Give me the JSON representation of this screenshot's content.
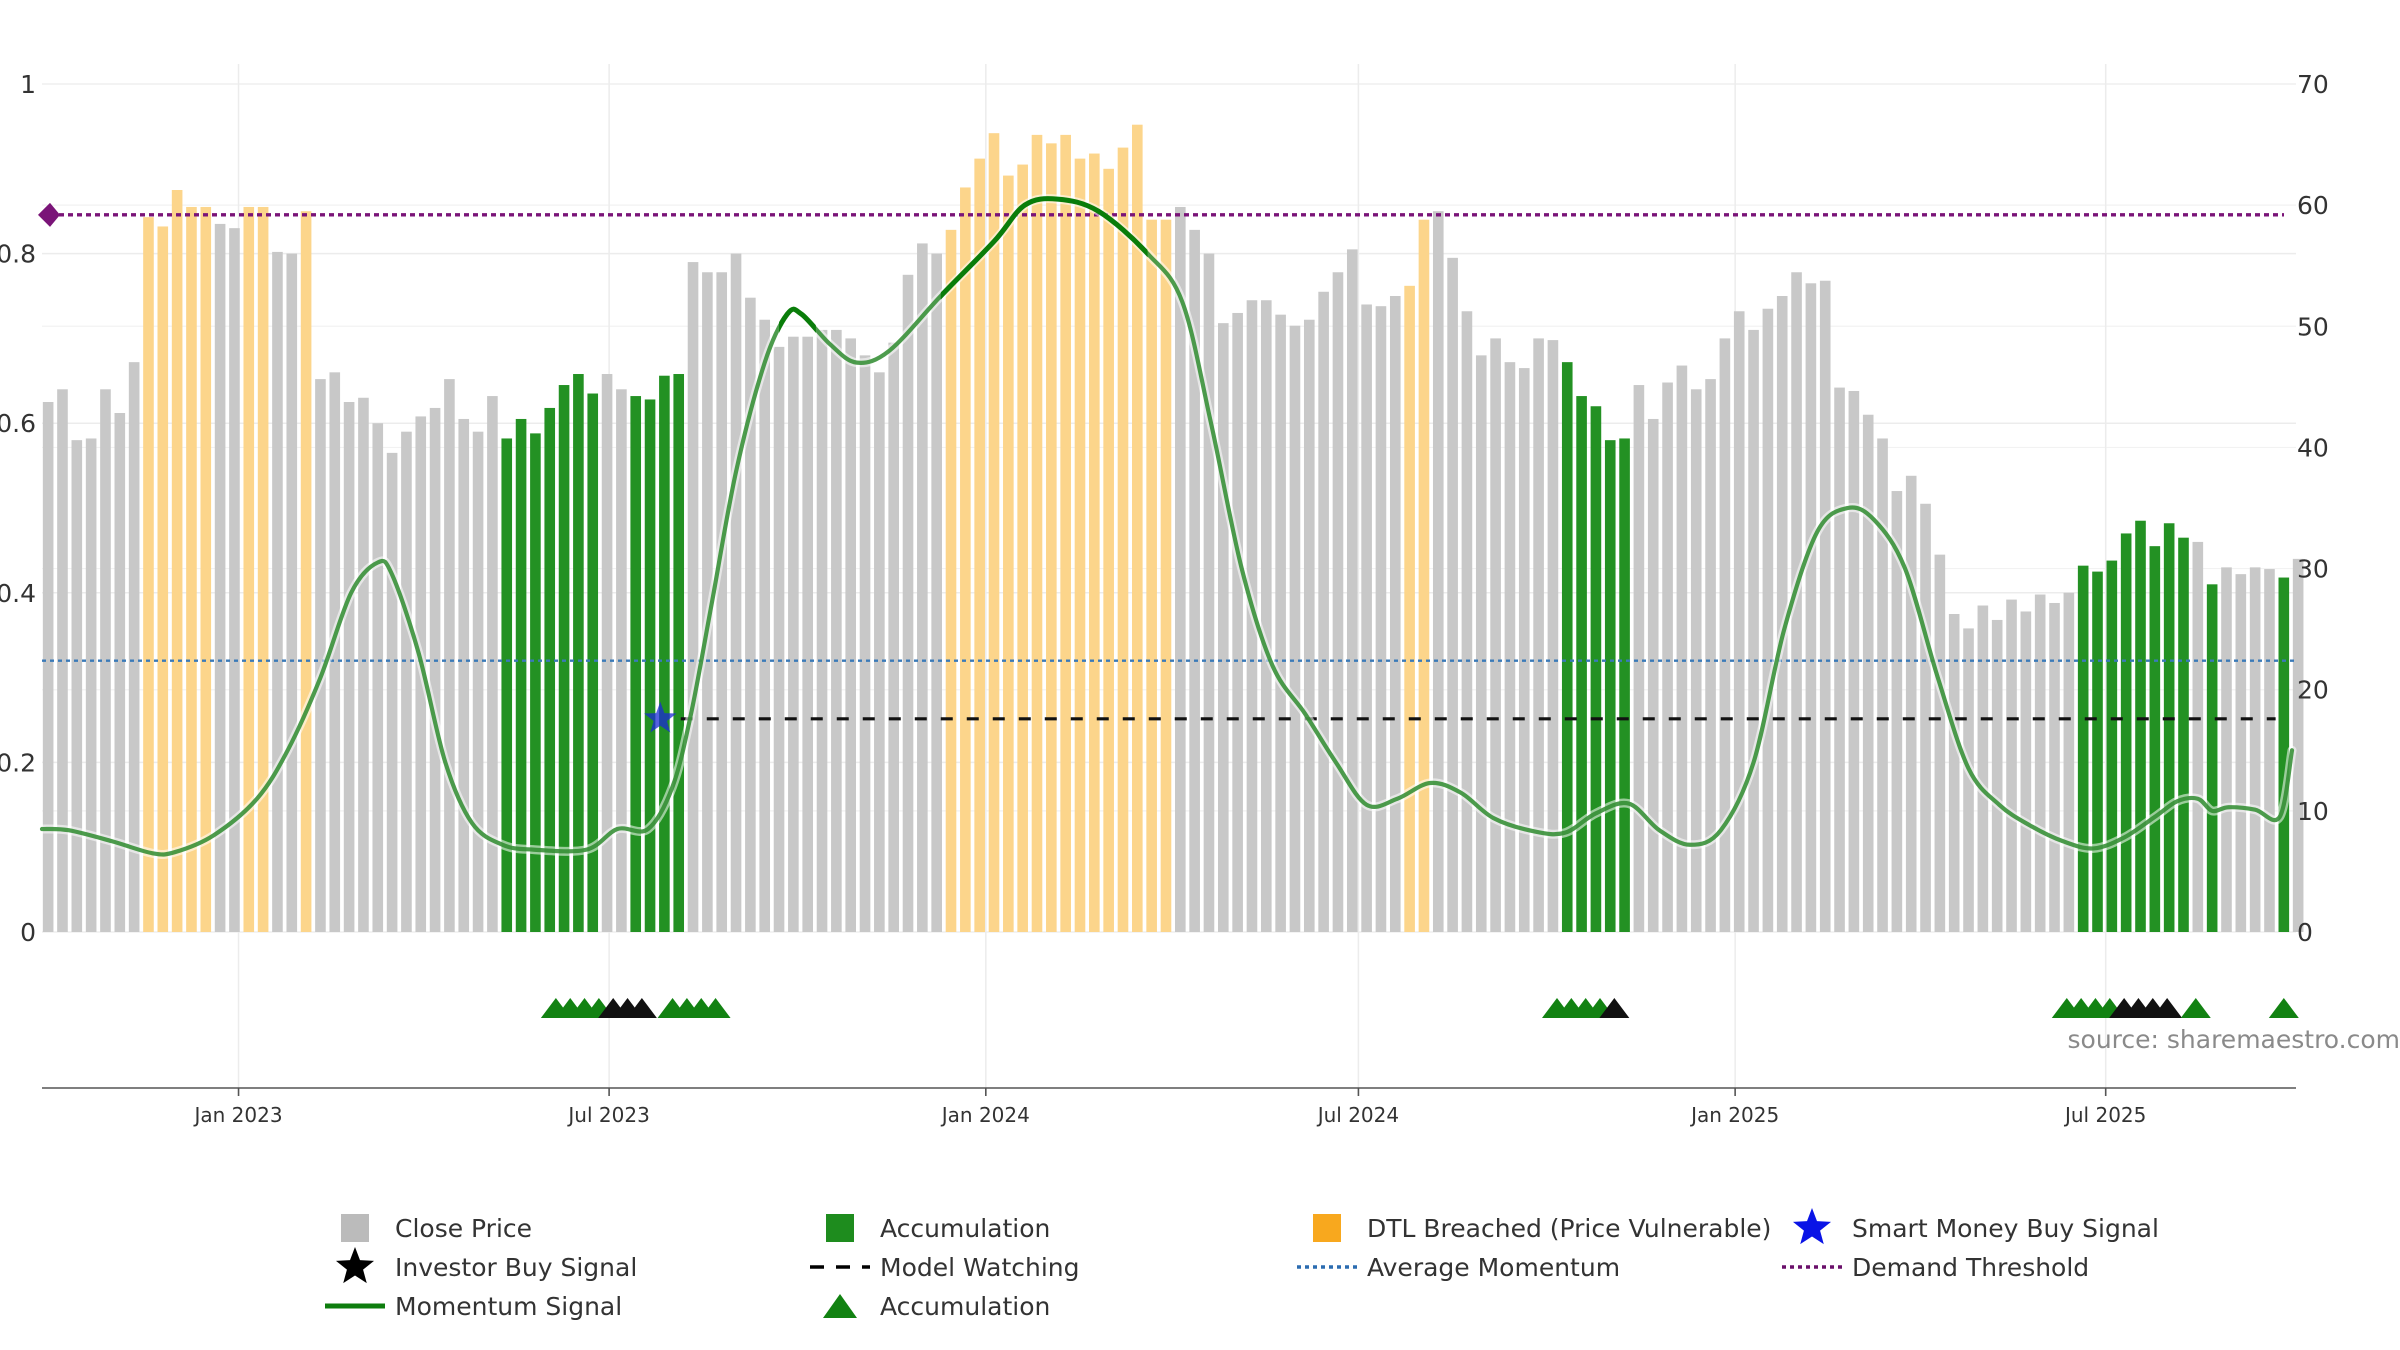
{
  "chart_data": {
    "type": "bar",
    "source_label": "source: sharemaestro.com",
    "x_range": [
      "2022-09-27",
      "2025-09-30"
    ],
    "x_ticks": [
      {
        "date": "2023-01-01",
        "label": "Jan 2023"
      },
      {
        "date": "2023-07-01",
        "label": "Jul 2023"
      },
      {
        "date": "2024-01-01",
        "label": "Jan 2024"
      },
      {
        "date": "2024-07-01",
        "label": "Jul 2024"
      },
      {
        "date": "2025-01-01",
        "label": "Jan 2025"
      },
      {
        "date": "2025-07-01",
        "label": "Jul 2025"
      }
    ],
    "y_left": {
      "min": 0,
      "max": 1,
      "ticks": [
        0,
        0.2,
        0.4,
        0.6,
        0.8,
        1
      ],
      "labels": [
        "0",
        "0.2",
        "0.4",
        "0.6",
        "0.8",
        "1"
      ]
    },
    "y_right": {
      "min": 0,
      "max": 70,
      "ticks": [
        0,
        10,
        20,
        30,
        40,
        50,
        60,
        70
      ],
      "labels": [
        "0",
        "10",
        "20",
        "30",
        "40",
        "50",
        "60",
        "70"
      ]
    },
    "grid": true,
    "colors": {
      "close": "#c8c8c8",
      "accumulation": "#239123",
      "dtl": "#fcd58b",
      "momentum": "#2e8b2e",
      "momentum_strong": "#0a7d0a",
      "average": "#3a7ab8",
      "demand": "#7a1478",
      "watching": "#111111",
      "star": "#1c2bd6",
      "triangle_green": "#128212",
      "triangle_black": "#111111"
    },
    "series": [
      {
        "name": "Close Price",
        "start_date": "2022-09-30",
        "step_days": 7,
        "values": [
          0.625,
          0.64,
          0.58,
          0.582,
          0.64,
          0.612,
          0.672,
          0.843,
          0.832,
          0.875,
          0.855,
          0.855,
          0.835,
          0.83,
          0.855,
          0.855,
          0.802,
          0.8,
          0.85,
          0.652,
          0.66,
          0.625,
          0.63,
          0.6,
          0.565,
          0.59,
          0.608,
          0.618,
          0.652,
          0.605,
          0.59,
          0.632,
          0.582,
          0.605,
          0.588,
          0.618,
          0.645,
          0.658,
          0.635,
          0.658,
          0.64,
          0.632,
          0.628,
          0.656,
          0.658,
          0.79,
          0.778,
          0.778,
          0.8,
          0.748,
          0.722,
          0.69,
          0.702,
          0.702,
          0.71,
          0.71,
          0.7,
          0.68,
          0.66,
          0.695,
          0.775,
          0.812,
          0.8,
          0.828,
          0.878,
          0.912,
          0.942,
          0.892,
          0.905,
          0.94,
          0.93,
          0.94,
          0.912,
          0.918,
          0.9,
          0.925,
          0.952,
          0.84,
          0.84,
          0.855,
          0.828,
          0.8,
          0.718,
          0.73,
          0.745,
          0.745,
          0.728,
          0.715,
          0.722,
          0.755,
          0.778,
          0.805,
          0.74,
          0.738,
          0.75,
          0.762,
          0.84,
          0.85,
          0.795,
          0.732,
          0.68,
          0.7,
          0.672,
          0.665,
          0.7,
          0.698,
          0.672,
          0.632,
          0.62,
          0.58,
          0.582,
          0.645,
          0.605,
          0.648,
          0.668,
          0.64,
          0.652,
          0.7,
          0.732,
          0.71,
          0.735,
          0.75,
          0.778,
          0.765,
          0.768,
          0.642,
          0.638,
          0.61,
          0.582,
          0.52,
          0.538,
          0.505,
          0.445,
          0.375,
          0.358,
          0.385,
          0.368,
          0.392,
          0.378,
          0.398,
          0.388,
          0.4,
          0.432,
          0.425,
          0.438,
          0.47,
          0.485,
          0.455,
          0.482,
          0.465,
          0.46,
          0.41,
          0.43,
          0.422,
          0.43,
          0.428,
          0.418,
          0.44
        ],
        "accumulation_ranges": [
          [
            32,
            38
          ],
          [
            41,
            44
          ],
          [
            106,
            110
          ],
          [
            142,
            149
          ],
          [
            151,
            151
          ],
          [
            156,
            156
          ]
        ],
        "dtl_ranges": [
          [
            7,
            11
          ],
          [
            14,
            15
          ],
          [
            18,
            18
          ],
          [
            63,
            78
          ],
          [
            95,
            96
          ]
        ]
      },
      {
        "name": "Momentum Signal",
        "axis": "right",
        "points": [
          [
            "2022-09-27",
            8.5
          ],
          [
            "2022-10-10",
            8.4
          ],
          [
            "2022-10-31",
            7.5
          ],
          [
            "2022-11-20",
            6.5
          ],
          [
            "2022-12-01",
            6.6
          ],
          [
            "2022-12-20",
            8.0
          ],
          [
            "2023-01-10",
            11.0
          ],
          [
            "2023-01-25",
            15.0
          ],
          [
            "2023-02-10",
            21.0
          ],
          [
            "2023-02-25",
            28.0
          ],
          [
            "2023-03-10",
            30.5
          ],
          [
            "2023-03-17",
            29.5
          ],
          [
            "2023-03-30",
            23.0
          ],
          [
            "2023-04-12",
            14.0
          ],
          [
            "2023-04-25",
            9.0
          ],
          [
            "2023-05-10",
            7.2
          ],
          [
            "2023-05-25",
            6.8
          ],
          [
            "2023-06-20",
            6.8
          ],
          [
            "2023-07-05",
            8.5
          ],
          [
            "2023-07-20",
            8.5
          ],
          [
            "2023-08-01",
            12.0
          ],
          [
            "2023-08-10",
            18.0
          ],
          [
            "2023-08-20",
            27.0
          ],
          [
            "2023-09-01",
            38.0
          ],
          [
            "2023-09-15",
            47.0
          ],
          [
            "2023-09-26",
            51.0
          ],
          [
            "2023-10-03",
            51.0
          ],
          [
            "2023-10-17",
            48.5
          ],
          [
            "2023-10-30",
            47.0
          ],
          [
            "2023-11-15",
            48.0
          ],
          [
            "2023-12-10",
            52.5
          ],
          [
            "2024-01-05",
            57.0
          ],
          [
            "2024-01-20",
            60.0
          ],
          [
            "2024-02-05",
            60.5
          ],
          [
            "2024-02-25",
            59.5
          ],
          [
            "2024-03-20",
            56.0
          ],
          [
            "2024-04-06",
            52.0
          ],
          [
            "2024-04-20",
            42.0
          ],
          [
            "2024-05-05",
            30.0
          ],
          [
            "2024-05-20",
            22.0
          ],
          [
            "2024-06-05",
            18.0
          ],
          [
            "2024-06-20",
            14.0
          ],
          [
            "2024-07-05",
            10.5
          ],
          [
            "2024-07-20",
            11.0
          ],
          [
            "2024-08-05",
            12.3
          ],
          [
            "2024-08-20",
            11.5
          ],
          [
            "2024-09-05",
            9.4
          ],
          [
            "2024-09-25",
            8.3
          ],
          [
            "2024-10-10",
            8.2
          ],
          [
            "2024-10-25",
            9.8
          ],
          [
            "2024-11-10",
            10.6
          ],
          [
            "2024-11-25",
            8.4
          ],
          [
            "2024-12-10",
            7.2
          ],
          [
            "2024-12-25",
            8.4
          ],
          [
            "2025-01-10",
            14.0
          ],
          [
            "2025-01-25",
            25.0
          ],
          [
            "2025-02-10",
            33.0
          ],
          [
            "2025-02-25",
            35.0
          ],
          [
            "2025-03-10",
            34.0
          ],
          [
            "2025-03-25",
            30.0
          ],
          [
            "2025-04-10",
            21.0
          ],
          [
            "2025-04-25",
            13.5
          ],
          [
            "2025-05-10",
            10.5
          ],
          [
            "2025-05-25",
            8.8
          ],
          [
            "2025-06-10",
            7.5
          ],
          [
            "2025-06-25",
            6.9
          ],
          [
            "2025-07-10",
            7.8
          ],
          [
            "2025-07-25",
            9.5
          ],
          [
            "2025-08-05",
            10.8
          ],
          [
            "2025-08-15",
            11.0
          ],
          [
            "2025-08-22",
            10.0
          ],
          [
            "2025-08-30",
            10.3
          ],
          [
            "2025-09-12",
            10.1
          ],
          [
            "2025-09-24",
            9.5
          ],
          [
            "2025-09-30",
            15.0
          ]
        ],
        "strong_segments": [
          [
            "2023-09-22",
            "2023-10-10"
          ],
          [
            "2023-12-10",
            "2024-03-20"
          ]
        ]
      },
      {
        "name": "Average Momentum",
        "axis": "right",
        "value": 22.4
      },
      {
        "name": "Demand Threshold",
        "axis": "right",
        "value": 59.2
      },
      {
        "name": "Model Watching",
        "axis": "right",
        "value": 17.6,
        "from": "2023-08-05",
        "to": "2025-09-22"
      },
      {
        "name": "Smart Money Buy Signal",
        "axis": "right",
        "date": "2023-07-26",
        "value": 17.6
      }
    ],
    "triangle_markers": [
      {
        "date": "2023-06-05",
        "color": "green"
      },
      {
        "date": "2023-06-12",
        "color": "green"
      },
      {
        "date": "2023-06-19",
        "color": "green"
      },
      {
        "date": "2023-06-26",
        "color": "green"
      },
      {
        "date": "2023-07-03",
        "color": "black"
      },
      {
        "date": "2023-07-10",
        "color": "black"
      },
      {
        "date": "2023-07-17",
        "color": "black"
      },
      {
        "date": "2023-08-01",
        "color": "green"
      },
      {
        "date": "2023-08-08",
        "color": "green"
      },
      {
        "date": "2023-08-15",
        "color": "green"
      },
      {
        "date": "2023-08-22",
        "color": "green"
      },
      {
        "date": "2024-10-06",
        "color": "green"
      },
      {
        "date": "2024-10-13",
        "color": "green"
      },
      {
        "date": "2024-10-20",
        "color": "green"
      },
      {
        "date": "2024-10-27",
        "color": "green"
      },
      {
        "date": "2024-11-03",
        "color": "black"
      },
      {
        "date": "2025-06-12",
        "color": "green"
      },
      {
        "date": "2025-06-19",
        "color": "green"
      },
      {
        "date": "2025-06-26",
        "color": "green"
      },
      {
        "date": "2025-07-03",
        "color": "green"
      },
      {
        "date": "2025-07-10",
        "color": "black"
      },
      {
        "date": "2025-07-17",
        "color": "black"
      },
      {
        "date": "2025-07-24",
        "color": "black"
      },
      {
        "date": "2025-07-31",
        "color": "black"
      },
      {
        "date": "2025-08-14",
        "color": "green"
      },
      {
        "date": "2025-09-26",
        "color": "green"
      }
    ],
    "legend": [
      {
        "key": "close",
        "label": "Close Price",
        "symbol": "square",
        "color": "#bbbbbb"
      },
      {
        "key": "accumulation",
        "label": "Accumulation",
        "symbol": "square",
        "color": "#1e8c1e"
      },
      {
        "key": "dtl",
        "label": "DTL Breached (Price Vulnerable)",
        "symbol": "square",
        "color": "#f8a81e"
      },
      {
        "key": "smart-money",
        "label": "Smart Money Buy Signal",
        "symbol": "star",
        "color": "#0a14e6"
      },
      {
        "key": "investor-buy",
        "label": "Investor Buy Signal",
        "symbol": "star",
        "color": "#000000"
      },
      {
        "key": "model-watching",
        "label": "Model Watching",
        "symbol": "dash",
        "color": "#000000"
      },
      {
        "key": "average-momentum",
        "label": "Average Momentum",
        "symbol": "dot",
        "color": "#2b6cb0"
      },
      {
        "key": "demand-threshold",
        "label": "Demand Threshold",
        "symbol": "dot",
        "color": "#6a0f6a"
      },
      {
        "key": "momentum-signal",
        "label": "Momentum Signal",
        "symbol": "line",
        "color": "#0e7d0e"
      },
      {
        "key": "accumulation-marker",
        "label": "Accumulation",
        "symbol": "triangle",
        "color": "#128212"
      }
    ]
  }
}
